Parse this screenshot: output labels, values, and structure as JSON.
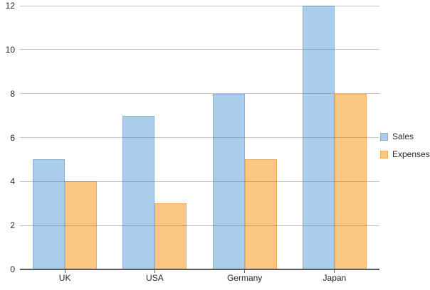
{
  "chart_data": {
    "type": "bar",
    "title": "",
    "categories": [
      "UK",
      "USA",
      "Germany",
      "Japan"
    ],
    "series": [
      {
        "name": "Sales",
        "values": [
          5,
          7,
          8,
          12
        ],
        "fill": "#A9CDEB",
        "stroke": "#85B1D8"
      },
      {
        "name": "Expenses",
        "values": [
          4,
          3,
          5,
          8
        ],
        "fill": "#FAC882",
        "stroke": "#EDAB5C"
      }
    ],
    "xlabel": "",
    "ylabel": "",
    "ylim": [
      0,
      12
    ],
    "ytick_step": 2,
    "ytick_labels": [
      "0",
      "2",
      "4",
      "6",
      "8",
      "10",
      "12"
    ],
    "grid": "horizontal",
    "legend": {
      "position": "right",
      "entries": [
        "Sales",
        "Expenses"
      ]
    }
  },
  "colors": {
    "background": "#FFFFFF",
    "gridline": "#C9C9C9",
    "axis_line": "#595959",
    "tick": "#595959",
    "text": "#262626",
    "sales_fill": "#A9CDEB",
    "sales_stroke": "#85B1D8",
    "expenses_fill": "#FAC882",
    "expenses_stroke": "#EDAB5C"
  }
}
